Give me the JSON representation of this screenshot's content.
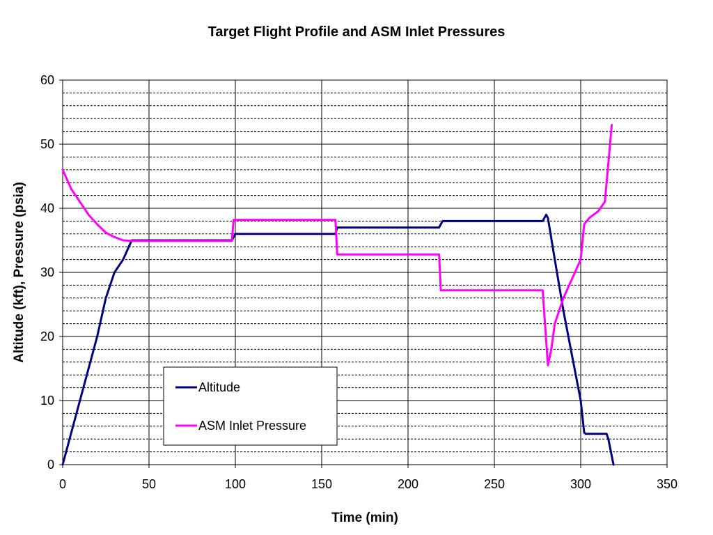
{
  "chart_data": {
    "type": "line",
    "title": "Target Flight Profile and ASM Inlet Pressures",
    "xlabel": "Time (min)",
    "ylabel": "Altitude (kft), Pressure (psia)",
    "xlim": [
      0,
      350
    ],
    "ylim": [
      0,
      60
    ],
    "x_ticks": [
      0,
      50,
      100,
      150,
      200,
      250,
      300,
      350
    ],
    "y_ticks": [
      0,
      10,
      20,
      30,
      40,
      50,
      60
    ],
    "x_tick_labels": [
      "0",
      "50",
      "100",
      "150",
      "200",
      "250",
      "300",
      "350"
    ],
    "y_tick_labels": [
      "0",
      "10",
      "20",
      "30",
      "40",
      "50",
      "60"
    ],
    "grid": {
      "major": true,
      "minor_horizontal_dashed": true,
      "minor_step": 2
    },
    "legend_position": "lower-left",
    "series": [
      {
        "name": "Altitude",
        "color": "#000080",
        "points": [
          [
            0,
            0
          ],
          [
            10,
            10
          ],
          [
            20,
            20
          ],
          [
            25,
            26
          ],
          [
            30,
            30
          ],
          [
            35,
            32
          ],
          [
            40,
            35
          ],
          [
            98,
            35
          ],
          [
            100,
            36
          ],
          [
            158,
            36
          ],
          [
            159,
            37
          ],
          [
            218,
            37
          ],
          [
            220,
            38
          ],
          [
            278,
            38
          ],
          [
            280,
            39
          ],
          [
            281,
            38.5
          ],
          [
            285,
            32
          ],
          [
            290,
            24
          ],
          [
            295,
            17
          ],
          [
            300,
            10
          ],
          [
            302,
            5
          ],
          [
            303,
            4.8
          ],
          [
            305,
            4.8
          ],
          [
            315,
            4.8
          ],
          [
            316,
            4
          ],
          [
            319,
            0
          ]
        ]
      },
      {
        "name": "ASM Inlet Pressure",
        "color": "#FF00FF",
        "points": [
          [
            0,
            46
          ],
          [
            5,
            43
          ],
          [
            10,
            41
          ],
          [
            15,
            39
          ],
          [
            20,
            37.5
          ],
          [
            25,
            36.2
          ],
          [
            30,
            35.5
          ],
          [
            35,
            35
          ],
          [
            40,
            34.9
          ],
          [
            98,
            34.9
          ],
          [
            99,
            38.2
          ],
          [
            158,
            38.2
          ],
          [
            159,
            32.8
          ],
          [
            218,
            32.8
          ],
          [
            219,
            27.2
          ],
          [
            278,
            27.2
          ],
          [
            281,
            15.5
          ],
          [
            283,
            18
          ],
          [
            285,
            22
          ],
          [
            290,
            26
          ],
          [
            295,
            29
          ],
          [
            300,
            32
          ],
          [
            302,
            37.5
          ],
          [
            305,
            38.5
          ],
          [
            310,
            39.5
          ],
          [
            314,
            41
          ],
          [
            316,
            47
          ],
          [
            318,
            53
          ]
        ]
      }
    ]
  },
  "legend": {
    "items": [
      "Altitude",
      "ASM Inlet Pressure"
    ]
  }
}
